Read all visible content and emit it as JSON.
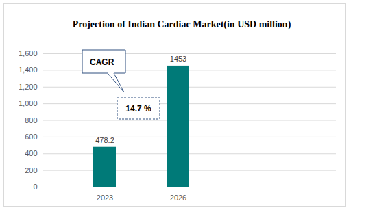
{
  "chart_data": {
    "type": "bar",
    "title": "Projection of Indian Cardiac Market(in USD million)",
    "categories": [
      "2023",
      "2026"
    ],
    "values": [
      478.2,
      1453
    ],
    "color": "#007a78",
    "ylim": [
      0,
      1600
    ],
    "yticks": [
      0,
      200,
      400,
      600,
      800,
      1000,
      1200,
      1400,
      1600
    ],
    "grid": true,
    "data_labels": true,
    "annotations": [
      "CAGR",
      "14.7 %"
    ]
  }
}
